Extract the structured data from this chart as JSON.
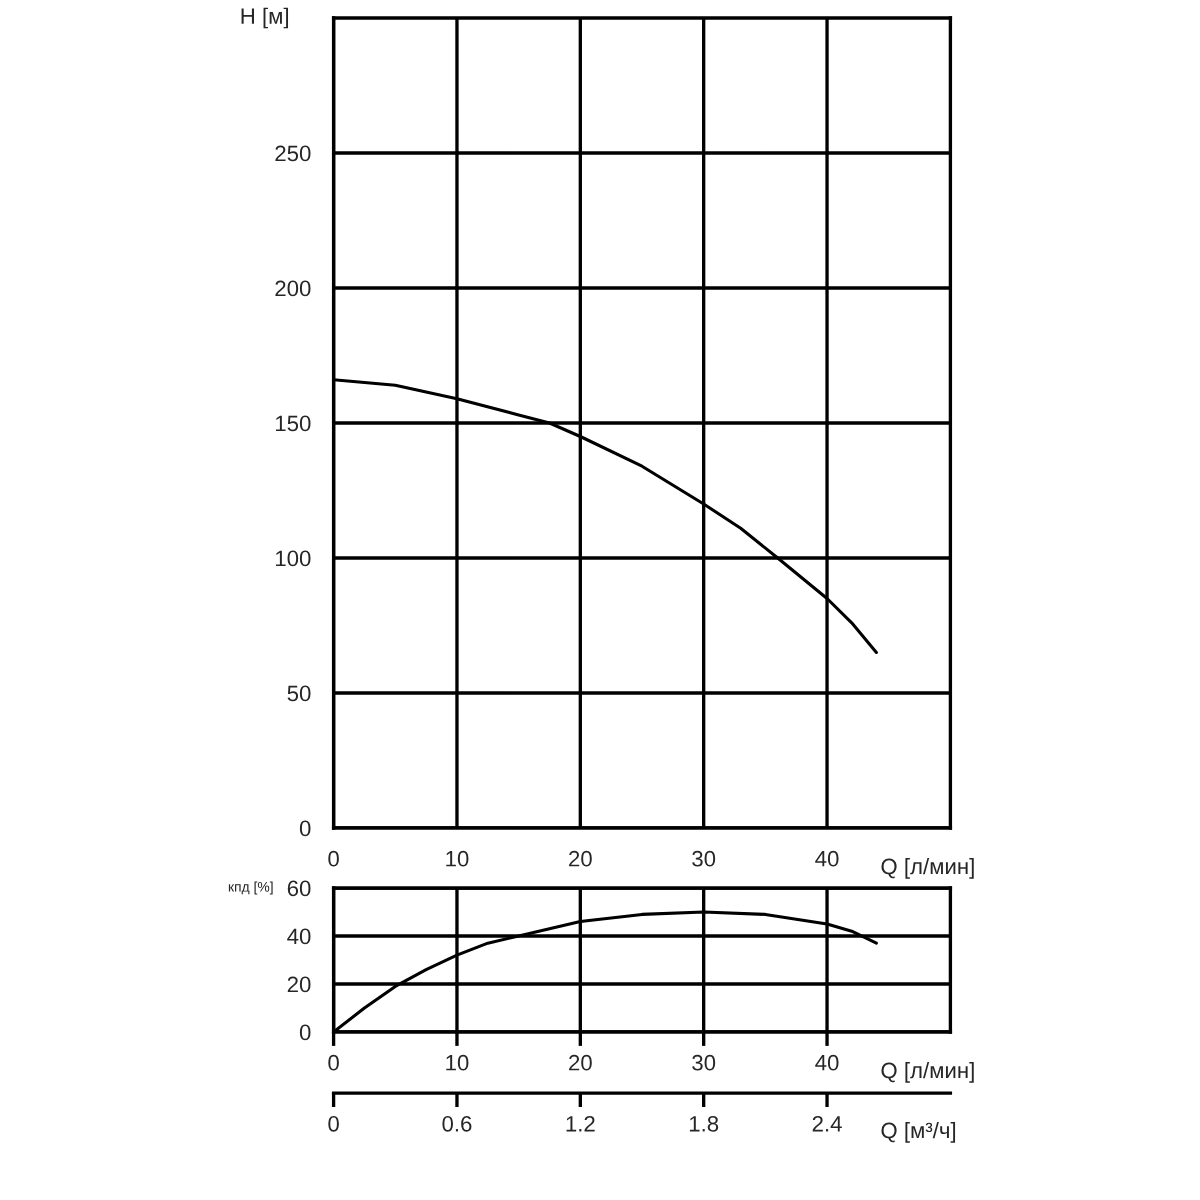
{
  "chart_data": [
    {
      "type": "line",
      "xlabel": "Q [л/мин]",
      "ylabel": "H [м]",
      "x": [
        0,
        5,
        10,
        15,
        17.5,
        20,
        25,
        30,
        33,
        36,
        40,
        42,
        44
      ],
      "series": [
        {
          "color": "#000000",
          "values": [
            166,
            164,
            159,
            153,
            150,
            145,
            134,
            120,
            111,
            100,
            85,
            76,
            65
          ]
        }
      ],
      "xlim": [
        0,
        50
      ],
      "ylim": [
        0,
        300
      ],
      "xticks": [
        0,
        10,
        20,
        30,
        40
      ],
      "yticks": [
        0,
        50,
        100,
        150,
        200,
        250
      ],
      "grid": true,
      "legend": false,
      "marker": "none",
      "line_style": "solid"
    },
    {
      "type": "line",
      "xlabel": "Q [л/мин]",
      "ylabel": "кпд [%]",
      "x": [
        0,
        2.5,
        5,
        7.5,
        10,
        12.5,
        15,
        20,
        25,
        30,
        35,
        40,
        42,
        44
      ],
      "series": [
        {
          "color": "#000000",
          "values": [
            0,
            10,
            19,
            26,
            32,
            37,
            40,
            46,
            49,
            50,
            49,
            45,
            42,
            37
          ]
        }
      ],
      "xlim": [
        0,
        50
      ],
      "ylim": [
        0,
        60
      ],
      "xticks": [
        0,
        10,
        20,
        30,
        40
      ],
      "yticks": [
        0,
        20,
        40,
        60
      ],
      "x2label": "Q [м³/ч]",
      "x2lim": [
        0,
        3
      ],
      "x2ticks": [
        0,
        0.6,
        1.2,
        1.8,
        2.4
      ],
      "grid": true,
      "legend": false,
      "marker": "none",
      "line_style": "solid"
    }
  ]
}
